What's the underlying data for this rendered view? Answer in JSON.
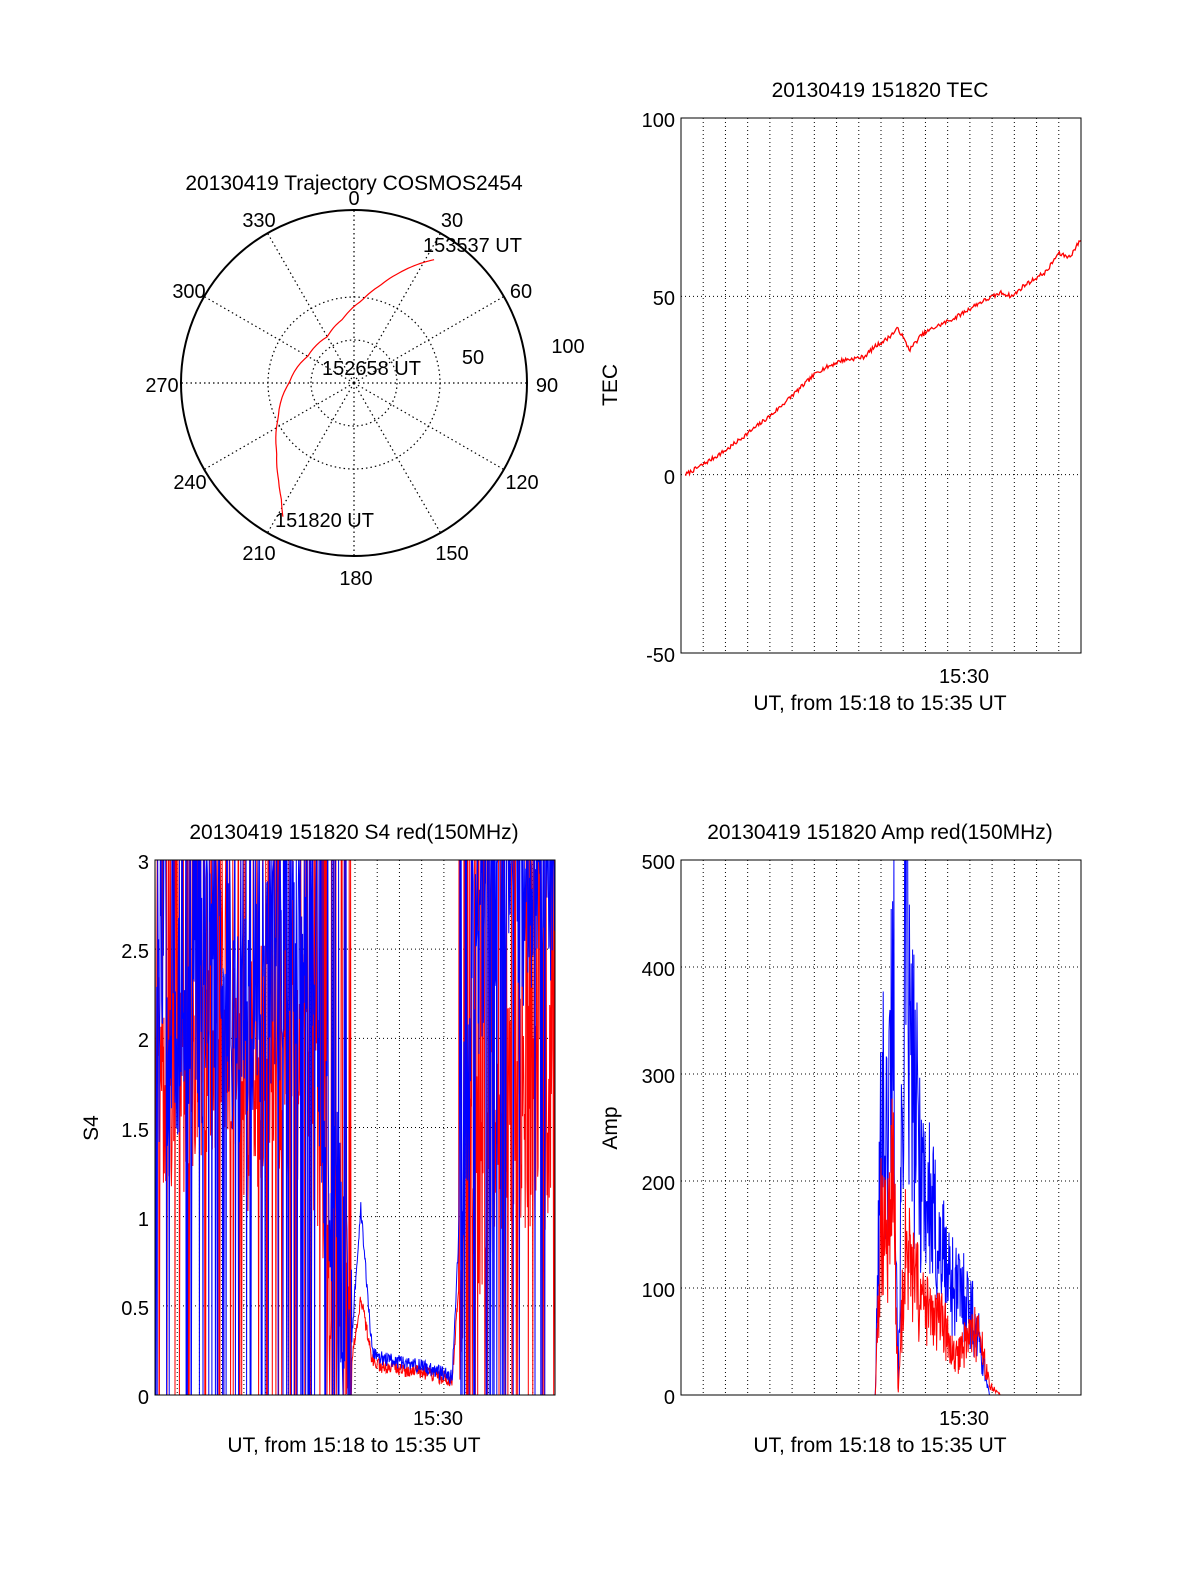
{
  "polar": {
    "title": "20130419 Trajectory COSMOS2454",
    "azimuth_labels": [
      "0",
      "30",
      "60",
      "90",
      "120",
      "150",
      "180",
      "210",
      "240",
      "270",
      "300",
      "330"
    ],
    "radius_labels": [
      "50",
      "100"
    ],
    "annotations": [
      "153537 UT",
      "152658 UT",
      "151820 UT"
    ],
    "track_color": "#ff0000"
  },
  "panels": {
    "tec": {
      "title": "20130419 151820 TEC",
      "ylabel": "TEC",
      "xlabel": "UT, from 15:18 to 15:35 UT",
      "xtick": "15:30",
      "yticks": [
        "100",
        "50",
        "0",
        "-50"
      ]
    },
    "s4": {
      "title": "20130419 151820 S4 red(150MHz)",
      "ylabel": "S4",
      "xlabel": "UT, from 15:18 to 15:35 UT",
      "xtick": "15:30",
      "yticks": [
        "3",
        "2.5",
        "2",
        "1.5",
        "1",
        "0.5",
        "0"
      ]
    },
    "amp": {
      "title": "20130419 151820 Amp red(150MHz)",
      "ylabel": "Amp",
      "xlabel": "UT, from 15:18 to 15:35 UT",
      "xtick": "15:30",
      "yticks": [
        "500",
        "400",
        "300",
        "200",
        "100",
        "0"
      ]
    }
  },
  "chart_data": [
    {
      "type": "scatter",
      "title": "20130419 Trajectory COSMOS2454",
      "coordinate_system": "polar (azimuth deg clockwise from north, zenith angle deg)",
      "series": [
        {
          "azimuth": [
            208,
            212,
            218,
            228,
            245,
            270,
            300,
            330,
            350,
            5,
            15,
            22,
            28,
            33
          ],
          "zenith": [
            105,
            95,
            85,
            72,
            58,
            45,
            37,
            37,
            45,
            57,
            70,
            82,
            93,
            102
          ],
          "color": "#ff0000"
        }
      ],
      "annotations": [
        {
          "text": "151820 UT",
          "azimuth": 208,
          "zenith": 105
        },
        {
          "text": "152658 UT",
          "azimuth": 270,
          "zenith": 45
        },
        {
          "text": "153537 UT",
          "azimuth": 33,
          "zenith": 102
        }
      ],
      "radial_range": [
        0,
        120
      ],
      "grid": true
    },
    {
      "type": "line",
      "title": "20130419 151820 TEC",
      "xlabel": "UT, from 15:18 to 15:35 UT",
      "ylabel": "TEC",
      "xlim_minutes_after_1518": [
        0,
        17.5
      ],
      "ylim": [
        -50,
        100
      ],
      "xticks": [
        "15:30"
      ],
      "grid": true,
      "series": [
        {
          "color": "#ff0000",
          "x": [
            0.2,
            1,
            2,
            3,
            4,
            5,
            6,
            7,
            8,
            8.5,
            9,
            9.5,
            10,
            10.5,
            11,
            12,
            13,
            14,
            14.5,
            15,
            16,
            16.5,
            17,
            17.5
          ],
          "y": [
            0,
            3,
            7,
            12,
            17,
            23,
            29,
            32,
            33,
            36,
            38,
            41,
            35,
            39,
            41,
            44,
            48,
            51,
            50,
            53,
            57,
            62,
            61,
            66
          ]
        }
      ]
    },
    {
      "type": "line",
      "title": "20130419 151820 S4 red(150MHz)",
      "xlabel": "UT, from 15:18 to 15:35 UT",
      "ylabel": "S4",
      "xlim_minutes_after_1518": [
        0,
        17.5
      ],
      "ylim": [
        0,
        3
      ],
      "xticks": [
        "15:30"
      ],
      "grid": true,
      "series": [
        {
          "color": "#0000ff",
          "x": [
            0,
            1,
            2,
            3,
            4,
            5,
            6,
            7,
            7.5,
            8,
            8.5,
            9,
            9.5,
            10,
            11,
            12,
            13,
            13.5,
            14,
            14.5,
            15,
            16,
            17,
            17.5
          ],
          "y": [
            2.0,
            2.0,
            2.2,
            2.3,
            2.0,
            2.4,
            2.5,
            2.6,
            1.3,
            1.0,
            0.12,
            1.05,
            0.25,
            0.2,
            0.18,
            0.15,
            0.1,
            1.5,
            2.5,
            2.8,
            2.9,
            2.8,
            2.95,
            2.9
          ]
        },
        {
          "color": "#ff0000",
          "x": [
            0,
            1,
            2,
            3,
            4,
            5,
            6,
            7,
            7.5,
            8,
            8.5,
            9,
            9.5,
            10,
            11,
            12,
            13,
            13.5,
            14,
            14.5,
            15,
            16,
            17,
            17.5
          ],
          "y": [
            1.8,
            1.8,
            1.9,
            2.0,
            1.7,
            2.0,
            1.9,
            1.7,
            1.0,
            0.85,
            0.1,
            0.55,
            0.2,
            0.15,
            0.14,
            0.12,
            0.08,
            1.0,
            1.2,
            1.1,
            1.5,
            1.6,
            1.6,
            1.5
          ]
        }
      ]
    },
    {
      "type": "line",
      "title": "20130419 151820 Amp red(150MHz)",
      "xlabel": "UT, from 15:18 to 15:35 UT",
      "ylabel": "Amp",
      "xlim_minutes_after_1518": [
        0,
        17.5
      ],
      "ylim": [
        0,
        500
      ],
      "xticks": [
        "15:30"
      ],
      "grid": true,
      "series": [
        {
          "color": "#0000ff",
          "x": [
            0,
            8.5,
            8.8,
            9.0,
            9.3,
            9.5,
            9.8,
            10.0,
            10.3,
            10.6,
            11.0,
            11.5,
            12.0,
            12.5,
            13.0,
            13.5,
            14.0,
            17.5
          ],
          "y": [
            0,
            0,
            330,
            250,
            450,
            0,
            480,
            350,
            280,
            230,
            180,
            140,
            110,
            100,
            60,
            0,
            0,
            0
          ]
        },
        {
          "color": "#ff0000",
          "x": [
            0,
            8.5,
            8.8,
            9.0,
            9.3,
            9.5,
            9.8,
            10.0,
            10.3,
            10.6,
            11.0,
            11.5,
            12.0,
            12.5,
            13.0,
            13.5,
            14.0,
            17.5
          ],
          "y": [
            0,
            0,
            200,
            160,
            240,
            0,
            150,
            130,
            110,
            90,
            80,
            70,
            35,
            60,
            65,
            10,
            0,
            0
          ]
        }
      ]
    }
  ]
}
